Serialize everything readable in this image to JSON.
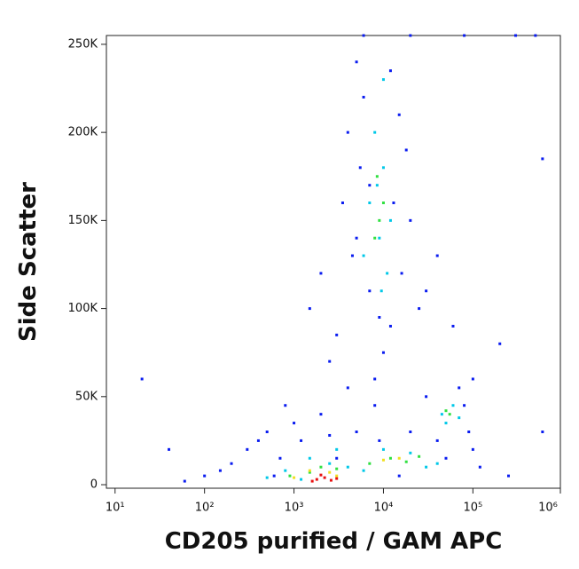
{
  "chart_data": {
    "type": "scatter",
    "xlabel": "CD205 purified / GAM APC",
    "ylabel": "Side Scatter",
    "xscale": "log",
    "xlim": [
      8,
      950000
    ],
    "ylim": [
      -2000,
      255000
    ],
    "xticks": [
      {
        "value": 10,
        "label": "10¹"
      },
      {
        "value": 100,
        "label": "10²"
      },
      {
        "value": 1000,
        "label": "10³"
      },
      {
        "value": 10000,
        "label": "10⁴"
      },
      {
        "value": 100000,
        "label": "10⁵"
      },
      {
        "value": 1000000,
        "label": "10⁶"
      }
    ],
    "yticks": [
      0,
      {
        "value": 50000,
        "label": "50K"
      },
      {
        "value": 100000,
        "label": "100K"
      },
      {
        "value": 150000,
        "label": "150K"
      },
      {
        "value": 200000,
        "label": "200K"
      },
      {
        "value": 250000,
        "label": "250K"
      }
    ],
    "series": [
      {
        "color": "#0a1cf0",
        "x": [
          5000,
          12000,
          6000,
          15000,
          4000,
          18000,
          5500,
          3500,
          20000,
          4500,
          16000,
          7000,
          9000,
          3000,
          25000,
          2500,
          40000,
          30000,
          60000,
          2000,
          1500,
          10000,
          800,
          500,
          300,
          200,
          100,
          60,
          150,
          400,
          1000,
          700,
          2000,
          5000,
          8000,
          20000,
          30000,
          70000,
          90000,
          100000,
          120000,
          50000,
          250000,
          600000,
          20,
          40,
          3000,
          600,
          1200,
          2500,
          9000,
          15000,
          40000,
          80000,
          6000,
          20000,
          80000,
          300000,
          7000,
          13000,
          5000,
          12000,
          8000,
          4000,
          600000,
          500000,
          200000,
          100000
        ],
        "y": [
          240000,
          235000,
          220000,
          210000,
          200000,
          190000,
          180000,
          160000,
          150000,
          130000,
          120000,
          110000,
          95000,
          85000,
          100000,
          70000,
          130000,
          110000,
          90000,
          120000,
          100000,
          75000,
          45000,
          30000,
          20000,
          12000,
          5000,
          2000,
          8000,
          25000,
          35000,
          15000,
          40000,
          30000,
          45000,
          30000,
          50000,
          55000,
          30000,
          20000,
          10000,
          15000,
          5000,
          30000,
          60000,
          20000,
          15000,
          5000,
          25000,
          28000,
          25000,
          5000,
          25000,
          45000,
          255000,
          255000,
          255000,
          255000,
          170000,
          160000,
          140000,
          90000,
          60000,
          55000,
          185000,
          255000,
          80000,
          60000
        ]
      },
      {
        "color": "#00c8e8",
        "x": [
          8000,
          10000,
          7000,
          12000,
          9000,
          6000,
          11000,
          8500,
          9500,
          10000,
          1500,
          2500,
          800,
          1200,
          4000,
          6000,
          10000,
          20000,
          40000,
          50000,
          60000,
          45000,
          70000,
          30000,
          500,
          3000
        ],
        "y": [
          200000,
          180000,
          160000,
          150000,
          140000,
          130000,
          120000,
          170000,
          110000,
          230000,
          15000,
          12000,
          8000,
          3000,
          10000,
          8000,
          20000,
          18000,
          12000,
          35000,
          45000,
          40000,
          38000,
          10000,
          4000,
          20000
        ]
      },
      {
        "color": "#30e040",
        "x": [
          9000,
          8000,
          10000,
          8500,
          2000,
          1500,
          900,
          3000,
          12000,
          18000,
          25000,
          55000,
          50000,
          7000
        ],
        "y": [
          150000,
          140000,
          160000,
          175000,
          10000,
          7000,
          5000,
          9000,
          15000,
          13000,
          16000,
          40000,
          42000,
          12000
        ]
      },
      {
        "color": "#f0e020",
        "x": [
          1500,
          2500,
          3000,
          10000,
          15000,
          1000
        ],
        "y": [
          8000,
          7000,
          5000,
          14000,
          15000,
          4000
        ]
      },
      {
        "color": "#e81010",
        "x": [
          1800,
          2200,
          2600,
          2000,
          1600,
          3000
        ],
        "y": [
          3000,
          4000,
          2500,
          5500,
          2000,
          3500
        ]
      }
    ]
  }
}
